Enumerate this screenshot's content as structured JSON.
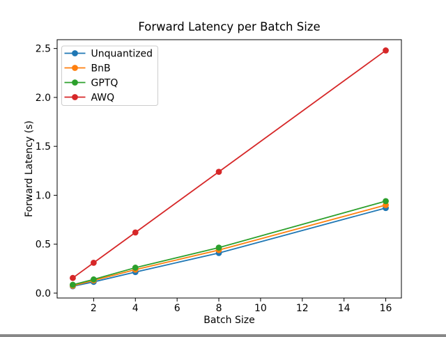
{
  "figure": {
    "background": "#ffffff",
    "axes_edge_color": "#000000",
    "legend_border_color": "#cccccc"
  },
  "chart_data": {
    "type": "line",
    "title": "Forward Latency per Batch Size",
    "xlabel": "Batch Size",
    "ylabel": "Forward Latency (s)",
    "x": [
      1,
      2,
      4,
      8,
      16
    ],
    "series": [
      {
        "name": "Unquantized",
        "color": "#1f77b4",
        "values": [
          0.07,
          0.115,
          0.215,
          0.41,
          0.87
        ]
      },
      {
        "name": "BnB",
        "color": "#ff7f0e",
        "values": [
          0.075,
          0.13,
          0.24,
          0.44,
          0.9
        ]
      },
      {
        "name": "GPTQ",
        "color": "#2ca02c",
        "values": [
          0.085,
          0.14,
          0.26,
          0.465,
          0.94
        ]
      },
      {
        "name": "AWQ",
        "color": "#d62728",
        "values": [
          0.155,
          0.31,
          0.62,
          1.24,
          2.48
        ]
      }
    ],
    "xlim": [
      0.25,
      16.75
    ],
    "ylim": [
      -0.05,
      2.59
    ],
    "xticks": [
      2,
      4,
      6,
      8,
      10,
      12,
      14,
      16
    ],
    "xtick_labels": [
      "2",
      "4",
      "6",
      "8",
      "10",
      "12",
      "14",
      "16"
    ],
    "yticks": [
      0.0,
      0.5,
      1.0,
      1.5,
      2.0,
      2.5
    ],
    "ytick_labels": [
      "0.0",
      "0.5",
      "1.0",
      "1.5",
      "2.0",
      "2.5"
    ],
    "grid": false,
    "marker": "o",
    "linestyle": "-",
    "legend": {
      "position": "upper left",
      "entries": [
        "Unquantized",
        "BnB",
        "GPTQ",
        "AWQ"
      ]
    }
  }
}
